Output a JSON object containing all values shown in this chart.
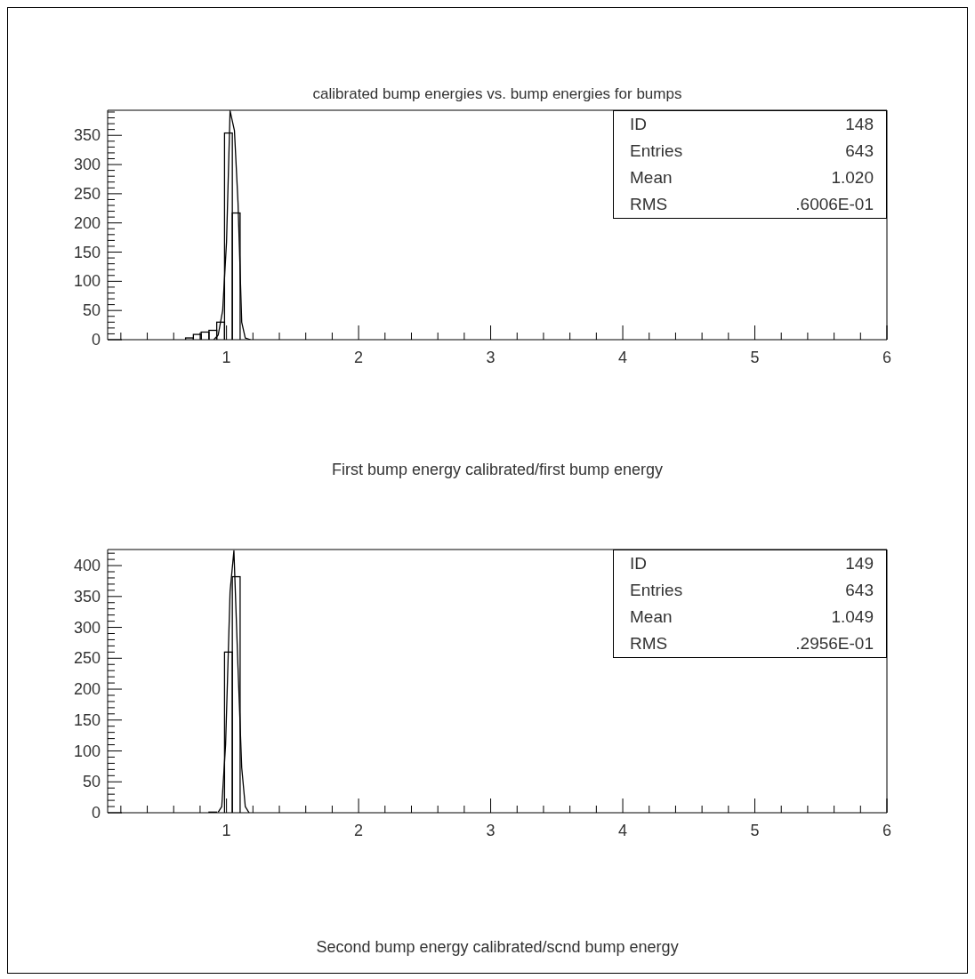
{
  "chart_data": [
    {
      "type": "histogram",
      "title": "calibrated bump energies vs. bump energies for bumps",
      "xlabel": "First bump energy calibrated/first bump energy",
      "xlim": [
        0.1,
        6
      ],
      "ylim": [
        0,
        393
      ],
      "xticks": [
        {
          "value": 0.2,
          "label": null
        },
        {
          "value": 0.4,
          "label": null
        },
        {
          "value": 0.6,
          "label": null
        },
        {
          "value": 0.8,
          "label": null
        },
        1,
        {
          "value": 1.2,
          "label": null
        },
        {
          "value": 1.4,
          "label": null
        },
        {
          "value": 1.6,
          "label": null
        },
        {
          "value": 1.8,
          "label": null
        },
        2,
        {
          "value": 2.2,
          "label": null
        },
        {
          "value": 2.4,
          "label": null
        },
        {
          "value": 2.6,
          "label": null
        },
        {
          "value": 2.8,
          "label": null
        },
        3,
        {
          "value": 3.2,
          "label": null
        },
        {
          "value": 3.4,
          "label": null
        },
        {
          "value": 3.6,
          "label": null
        },
        {
          "value": 3.8,
          "label": null
        },
        4,
        {
          "value": 4.2,
          "label": null
        },
        {
          "value": 4.4,
          "label": null
        },
        {
          "value": 4.6,
          "label": null
        },
        {
          "value": 4.8,
          "label": null
        },
        5,
        {
          "value": 5.2,
          "label": null
        },
        {
          "value": 5.4,
          "label": null
        },
        {
          "value": 5.6,
          "label": null
        },
        {
          "value": 5.8,
          "label": null
        },
        6
      ],
      "yticks": [
        0,
        {
          "value": 10,
          "label": null
        },
        {
          "value": 20,
          "label": null
        },
        {
          "value": 30,
          "label": null
        },
        {
          "value": 40,
          "label": null
        },
        50,
        {
          "value": 60,
          "label": null
        },
        {
          "value": 70,
          "label": null
        },
        {
          "value": 80,
          "label": null
        },
        {
          "value": 90,
          "label": null
        },
        100,
        {
          "value": 110,
          "label": null
        },
        {
          "value": 120,
          "label": null
        },
        {
          "value": 130,
          "label": null
        },
        {
          "value": 140,
          "label": null
        },
        150,
        {
          "value": 160,
          "label": null
        },
        {
          "value": 170,
          "label": null
        },
        {
          "value": 180,
          "label": null
        },
        {
          "value": 190,
          "label": null
        },
        200,
        {
          "value": 210,
          "label": null
        },
        {
          "value": 220,
          "label": null
        },
        {
          "value": 230,
          "label": null
        },
        {
          "value": 240,
          "label": null
        },
        250,
        {
          "value": 260,
          "label": null
        },
        {
          "value": 270,
          "label": null
        },
        {
          "value": 280,
          "label": null
        },
        {
          "value": 290,
          "label": null
        },
        300,
        {
          "value": 310,
          "label": null
        },
        {
          "value": 320,
          "label": null
        },
        {
          "value": 330,
          "label": null
        },
        {
          "value": 340,
          "label": null
        },
        350,
        {
          "value": 360,
          "label": null
        },
        {
          "value": 370,
          "label": null
        },
        {
          "value": 380,
          "label": null
        },
        {
          "value": 390,
          "label": null
        }
      ],
      "annotations": [
        "ID",
        "148",
        "Entries",
        "643",
        "Mean",
        "1.020",
        "RMS",
        ".6006E-01"
      ],
      "series": [
        {
          "color": "#000000",
          "bins": [
            0.69,
            0.749,
            0.808,
            0.867,
            0.926,
            0.985,
            1.044,
            1.103,
            1.162
          ],
          "values": [
            3,
            9,
            13,
            16,
            30,
            354,
            217,
            0
          ]
        },
        {
          "type": "line",
          "color": "#000000",
          "x": [
            0.904,
            0.937,
            0.971,
            1.0,
            1.027,
            1.06,
            1.087,
            1.115,
            1.142,
            1.182
          ],
          "values": [
            0,
            8,
            50,
            167,
            392,
            358,
            235,
            30,
            3,
            0
          ]
        }
      ]
    },
    {
      "type": "histogram",
      "xlabel": "Second bump energy calibrated/scnd bump energy",
      "xlim": [
        0.1,
        6
      ],
      "ylim": [
        0,
        426
      ],
      "xticks": [
        {
          "value": 0.2,
          "label": null
        },
        {
          "value": 0.4,
          "label": null
        },
        {
          "value": 0.6,
          "label": null
        },
        {
          "value": 0.8,
          "label": null
        },
        1,
        {
          "value": 1.2,
          "label": null
        },
        {
          "value": 1.4,
          "label": null
        },
        {
          "value": 1.6,
          "label": null
        },
        {
          "value": 1.8,
          "label": null
        },
        2,
        {
          "value": 2.2,
          "label": null
        },
        {
          "value": 2.4,
          "label": null
        },
        {
          "value": 2.6,
          "label": null
        },
        {
          "value": 2.8,
          "label": null
        },
        3,
        {
          "value": 3.2,
          "label": null
        },
        {
          "value": 3.4,
          "label": null
        },
        {
          "value": 3.6,
          "label": null
        },
        {
          "value": 3.8,
          "label": null
        },
        4,
        {
          "value": 4.2,
          "label": null
        },
        {
          "value": 4.4,
          "label": null
        },
        {
          "value": 4.6,
          "label": null
        },
        {
          "value": 4.8,
          "label": null
        },
        5,
        {
          "value": 5.2,
          "label": null
        },
        {
          "value": 5.4,
          "label": null
        },
        {
          "value": 5.6,
          "label": null
        },
        {
          "value": 5.8,
          "label": null
        },
        6
      ],
      "yticks": [
        0,
        {
          "value": 10,
          "label": null
        },
        {
          "value": 20,
          "label": null
        },
        {
          "value": 30,
          "label": null
        },
        {
          "value": 40,
          "label": null
        },
        50,
        {
          "value": 60,
          "label": null
        },
        {
          "value": 70,
          "label": null
        },
        {
          "value": 80,
          "label": null
        },
        {
          "value": 90,
          "label": null
        },
        100,
        {
          "value": 110,
          "label": null
        },
        {
          "value": 120,
          "label": null
        },
        {
          "value": 130,
          "label": null
        },
        {
          "value": 140,
          "label": null
        },
        150,
        {
          "value": 160,
          "label": null
        },
        {
          "value": 170,
          "label": null
        },
        {
          "value": 180,
          "label": null
        },
        {
          "value": 190,
          "label": null
        },
        200,
        {
          "value": 210,
          "label": null
        },
        {
          "value": 220,
          "label": null
        },
        {
          "value": 230,
          "label": null
        },
        {
          "value": 240,
          "label": null
        },
        250,
        {
          "value": 260,
          "label": null
        },
        {
          "value": 270,
          "label": null
        },
        {
          "value": 280,
          "label": null
        },
        {
          "value": 290,
          "label": null
        },
        300,
        {
          "value": 310,
          "label": null
        },
        {
          "value": 320,
          "label": null
        },
        {
          "value": 330,
          "label": null
        },
        {
          "value": 340,
          "label": null
        },
        350,
        {
          "value": 360,
          "label": null
        },
        {
          "value": 370,
          "label": null
        },
        {
          "value": 380,
          "label": null
        },
        {
          "value": 390,
          "label": null
        },
        400,
        {
          "value": 410,
          "label": null
        },
        {
          "value": 420,
          "label": null
        }
      ],
      "annotations": [
        "ID",
        "149",
        "Entries",
        "643",
        "Mean",
        "1.049",
        "RMS",
        ".2956E-01"
      ],
      "series": [
        {
          "color": "#000000",
          "bins": [
            0.867,
            0.926,
            0.985,
            1.044,
            1.103,
            1.162
          ],
          "values": [
            1,
            0,
            260,
            382,
            0
          ]
        },
        {
          "type": "line",
          "color": "#000000",
          "x": [
            0.937,
            0.964,
            0.993,
            1.027,
            1.056,
            1.087,
            1.115,
            1.142,
            1.171
          ],
          "values": [
            1,
            10,
            110,
            358,
            424,
            235,
            73,
            10,
            0
          ]
        }
      ]
    }
  ]
}
